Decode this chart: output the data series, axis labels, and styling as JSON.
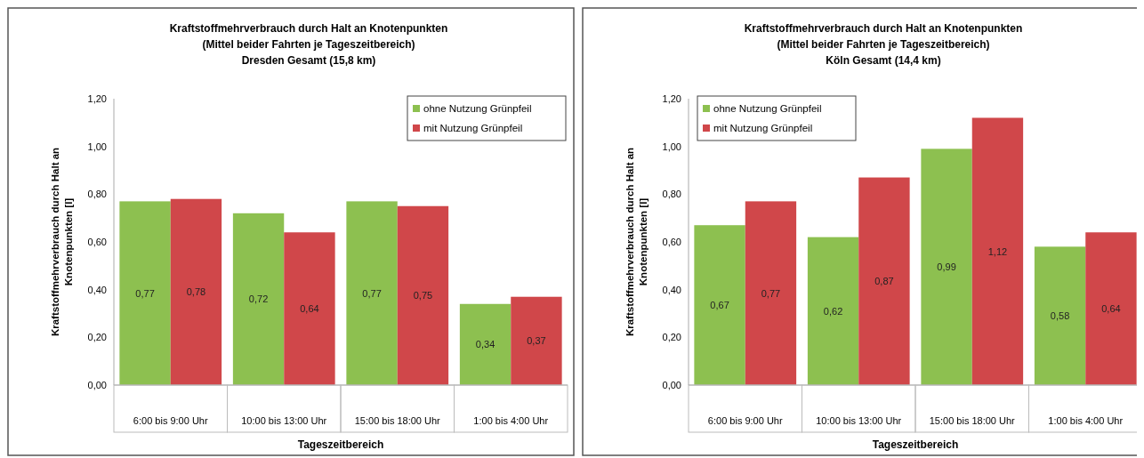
{
  "chart_data": [
    {
      "type": "bar",
      "title": "Kraftstoffmehrverbrauch durch Halt an Knotenpunkten",
      "subtitle": "(Mittel beider Fahrten je Tageszeitbereich)\nDresden Gesamt (15,8 km)",
      "xlabel": "Tageszeitbereich",
      "ylabel": "Kraftstoffmehrverbrauch durch Halt an Knotenpunkten [l]",
      "categories": [
        "6:00 bis 9:00 Uhr",
        "10:00 bis 13:00 Uhr",
        "15:00 bis 18:00 Uhr",
        "1:00 bis 4:00 Uhr"
      ],
      "ylim": [
        0,
        1.2
      ],
      "yticks": [
        {
          "value": 0,
          "label": "0,00"
        },
        {
          "value": 0.2,
          "label": "0,20"
        },
        {
          "value": 0.4,
          "label": "0,40"
        },
        {
          "value": 0.6,
          "label": "0,60"
        },
        {
          "value": 0.8,
          "label": "0,80"
        },
        {
          "value": 1,
          "label": "1,00"
        },
        {
          "value": 1.2,
          "label": "1,20"
        }
      ],
      "grid": false,
      "legend": "top right",
      "series": [
        {
          "name": "ohne Nutzung Grünpfeil",
          "color": "#8dc050",
          "values": [
            0.77,
            0.72,
            0.77,
            0.34
          ],
          "value_labels": [
            "0,77",
            "0,72",
            "0,77",
            "0,34"
          ]
        },
        {
          "name": "mit Nutzung Grünpfeil",
          "color": "#d0474a",
          "values": [
            0.78,
            0.64,
            0.75,
            0.37
          ],
          "value_labels": [
            "0,78",
            "0,64",
            "0,75",
            "0,37"
          ]
        }
      ]
    },
    {
      "type": "bar",
      "title": "Kraftstoffmehrverbrauch durch Halt an Knotenpunkten",
      "subtitle": "(Mittel beider Fahrten je Tageszeitbereich)\nKöln Gesamt (14,4 km)",
      "xlabel": "Tageszeitbereich",
      "ylabel": "Kraftstoffmehrverbrauch durch Halt an Knotenpunkten [l]",
      "categories": [
        "6:00 bis 9:00 Uhr",
        "10:00 bis 13:00 Uhr",
        "15:00 bis 18:00 Uhr",
        "1:00 bis 4:00 Uhr"
      ],
      "ylim": [
        0,
        1.2
      ],
      "yticks": [
        {
          "value": 0,
          "label": "0,00"
        },
        {
          "value": 0.2,
          "label": "0,20"
        },
        {
          "value": 0.4,
          "label": "0,40"
        },
        {
          "value": 0.6,
          "label": "0,60"
        },
        {
          "value": 0.8,
          "label": "0,80"
        },
        {
          "value": 1,
          "label": "1,00"
        },
        {
          "value": 1.2,
          "label": "1,20"
        }
      ],
      "grid": false,
      "legend": "top left",
      "series": [
        {
          "name": "ohne Nutzung Grünpfeil",
          "color": "#8dc050",
          "values": [
            0.67,
            0.62,
            0.99,
            0.58
          ],
          "value_labels": [
            "0,67",
            "0,62",
            "0,99",
            "0,58"
          ]
        },
        {
          "name": "mit Nutzung Grünpfeil",
          "color": "#d0474a",
          "values": [
            0.77,
            0.87,
            1.12,
            0.64
          ],
          "value_labels": [
            "0,77",
            "0,87",
            "1,12",
            "0,64"
          ]
        }
      ]
    }
  ]
}
